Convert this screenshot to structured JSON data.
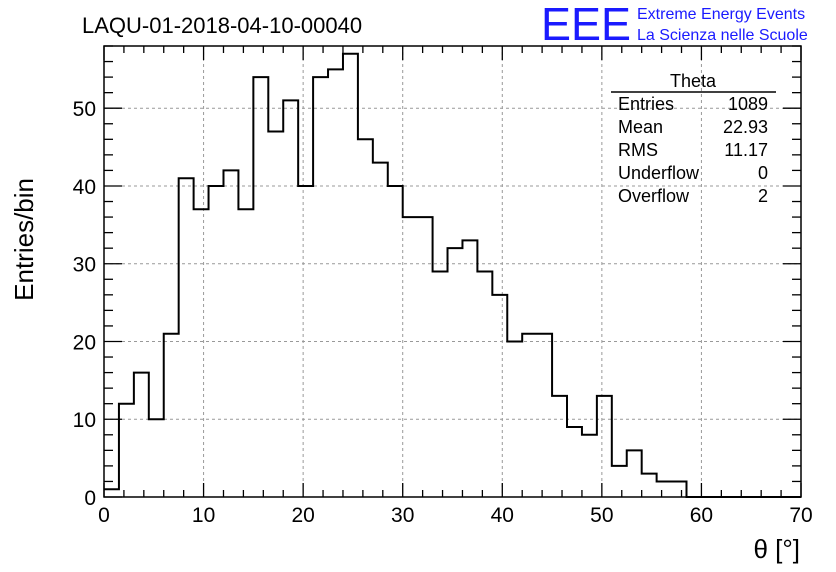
{
  "title": "LAQU-01-2018-04-10-00040",
  "brand": {
    "logo": "EEE",
    "line1": "Extreme Energy Events",
    "line2": "La Scienza nelle Scuole",
    "color": "#1a1aff"
  },
  "stats": {
    "name": "Theta",
    "rows": [
      {
        "label": "Entries",
        "value": "1089"
      },
      {
        "label": "Mean",
        "value": "22.93"
      },
      {
        "label": "RMS",
        "value": "11.17"
      },
      {
        "label": "Underflow",
        "value": "0"
      },
      {
        "label": "Overflow",
        "value": "2"
      }
    ]
  },
  "chart_data": {
    "type": "histogram",
    "xlabel": "θ [°]",
    "ylabel": "Entries/bin",
    "xlim": [
      0,
      70
    ],
    "ylim": [
      0,
      58
    ],
    "bin_width": 1.5,
    "bin_start": 0,
    "values": [
      1,
      12,
      16,
      10,
      21,
      41,
      37,
      40,
      42,
      37,
      54,
      47,
      51,
      40,
      54,
      55,
      57,
      46,
      43,
      40,
      36,
      36,
      29,
      32,
      33,
      29,
      26,
      20,
      21,
      21,
      13,
      9,
      8,
      13,
      4,
      6,
      3,
      2,
      2,
      0,
      0,
      0,
      0,
      0,
      0,
      0,
      0
    ],
    "xticks": [
      0,
      10,
      20,
      30,
      40,
      50,
      60,
      70
    ],
    "yticks": [
      0,
      10,
      20,
      30,
      40,
      50
    ],
    "grid": true,
    "line_color": "#000000"
  }
}
